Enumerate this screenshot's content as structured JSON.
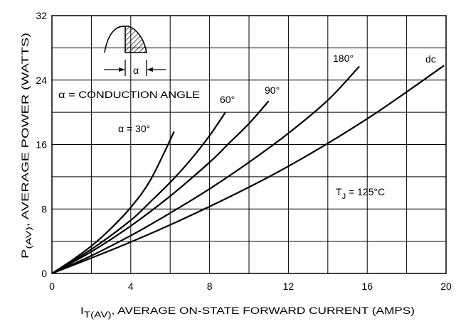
{
  "chart_data": {
    "type": "line",
    "title": "",
    "xlabel": {
      "main": "I",
      "sub": "T(AV)",
      "rest": ", AVERAGE ON-STATE FORWARD CURRENT (AMPS)"
    },
    "ylabel": {
      "main": "P",
      "sub": "(AV)",
      "rest": ", AVERAGE POWER (WATTS)"
    },
    "xlim": [
      0,
      20
    ],
    "ylim": [
      0,
      32
    ],
    "xticks": [
      "0",
      "4",
      "8",
      "12",
      "16",
      "20"
    ],
    "yticks": [
      "0",
      "8",
      "16",
      "24",
      "32"
    ],
    "x_minor_step": 2,
    "y_minor_step": 4,
    "grid": true,
    "series": [
      {
        "name": "α = 30°",
        "points": [
          [
            0,
            0
          ],
          [
            1,
            1.6
          ],
          [
            2,
            3.4
          ],
          [
            3,
            5.6
          ],
          [
            4,
            8.2
          ],
          [
            5,
            11.6
          ],
          [
            6.2,
            17.6
          ]
        ]
      },
      {
        "name": "60°",
        "points": [
          [
            0,
            0
          ],
          [
            2,
            3.0
          ],
          [
            4,
            6.6
          ],
          [
            5,
            8.9
          ],
          [
            6,
            11.3
          ],
          [
            7,
            14.0
          ],
          [
            8,
            17.1
          ],
          [
            8.8,
            20.0
          ]
        ]
      },
      {
        "name": "90°",
        "points": [
          [
            0,
            0
          ],
          [
            2,
            2.7
          ],
          [
            4,
            5.9
          ],
          [
            6,
            9.6
          ],
          [
            8,
            13.8
          ],
          [
            9,
            16.2
          ],
          [
            10,
            18.6
          ],
          [
            11,
            21.4
          ]
        ]
      },
      {
        "name": "180°",
        "points": [
          [
            0,
            0
          ],
          [
            2,
            2.2
          ],
          [
            4,
            4.7
          ],
          [
            6,
            7.5
          ],
          [
            8,
            10.5
          ],
          [
            10,
            13.8
          ],
          [
            12,
            17.4
          ],
          [
            14,
            21.5
          ],
          [
            15.6,
            25.7
          ]
        ]
      },
      {
        "name": "dc",
        "points": [
          [
            0,
            0
          ],
          [
            4,
            3.9
          ],
          [
            8,
            8.3
          ],
          [
            12,
            13.3
          ],
          [
            16,
            19.2
          ],
          [
            19.9,
            25.8
          ]
        ]
      }
    ],
    "annotations": {
      "conduction_angle": "α = CONDUCTION ANGLE",
      "alpha": "α",
      "tj": {
        "main": "T",
        "sub": "J",
        "rest": " = 125°C"
      }
    }
  }
}
